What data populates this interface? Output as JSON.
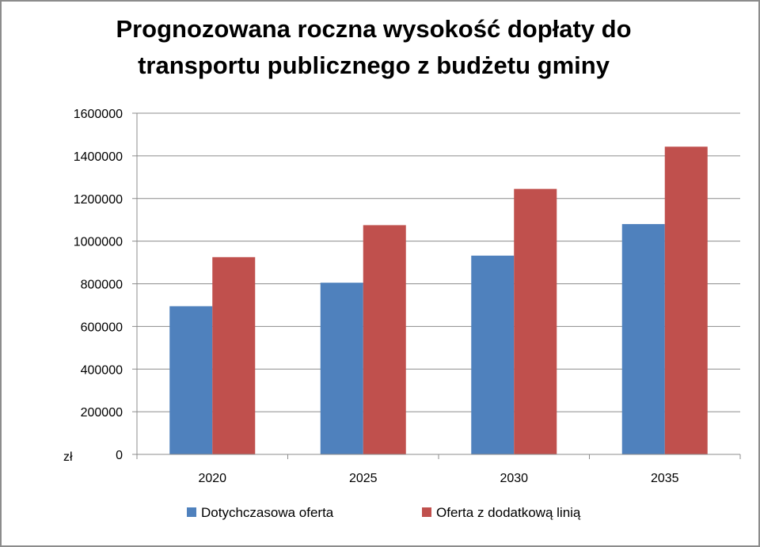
{
  "chart_data": {
    "type": "bar",
    "title": "Prognozowana roczna wysokość dopłaty do\ntransportu publicznego z budżetu  gminy",
    "xlabel": "",
    "ylabel": "zł",
    "categories": [
      "2020",
      "2025",
      "2030",
      "2035"
    ],
    "ylim": [
      0,
      1600000
    ],
    "yticks": [
      0,
      200000,
      400000,
      600000,
      800000,
      1000000,
      1200000,
      1400000,
      1600000
    ],
    "series": [
      {
        "name": "Dotychczasowa oferta",
        "color": "#4f81bd",
        "values": [
          695000,
          805000,
          932000,
          1080000
        ]
      },
      {
        "name": "Oferta z dodatkową linią",
        "color": "#c0504d",
        "values": [
          925000,
          1075000,
          1245000,
          1443000
        ]
      }
    ],
    "grid": true,
    "legend": "bottom"
  }
}
